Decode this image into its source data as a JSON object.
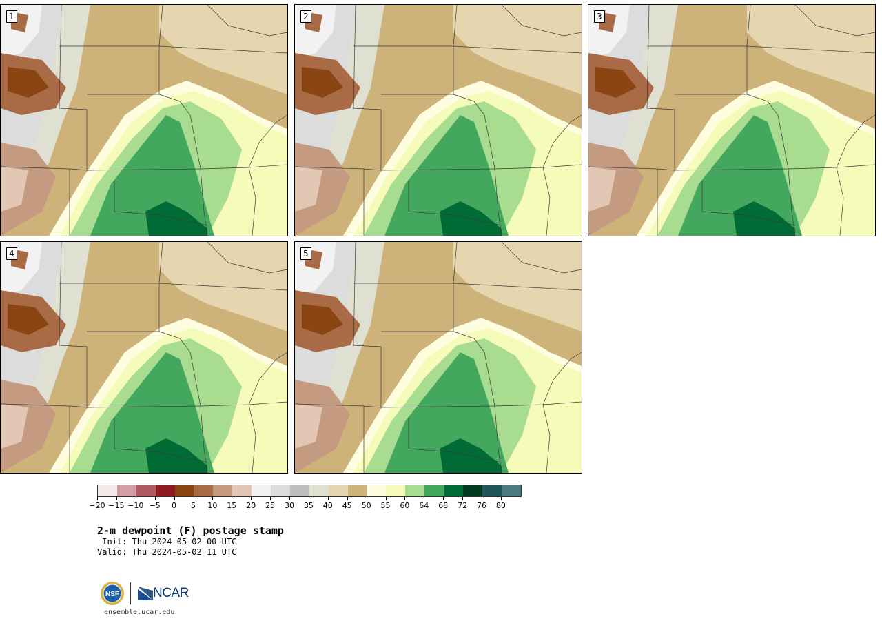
{
  "panels": [
    {
      "label": "1"
    },
    {
      "label": "2"
    },
    {
      "label": "3"
    },
    {
      "label": "4"
    },
    {
      "label": "5"
    }
  ],
  "colorbar": {
    "colors": [
      "#f5e9e9",
      "#d59ea5",
      "#b05a62",
      "#8c1a23",
      "#8b4513",
      "#a86b45",
      "#c49a80",
      "#e2c7b4",
      "#f2f2f2",
      "#dcdcdc",
      "#bdbdbd",
      "#e0e0d2",
      "#e5d6b0",
      "#cdb27a",
      "#fffde0",
      "#f5fbb8",
      "#a8dc90",
      "#43a85e",
      "#006b35",
      "#003a20",
      "#1f5558",
      "#4d7b80"
    ],
    "tick_labels": [
      "−20",
      "−15",
      "−10",
      "−5",
      "0",
      "5",
      "10",
      "15",
      "20",
      "25",
      "30",
      "35",
      "40",
      "45",
      "50",
      "55",
      "60",
      "64",
      "68",
      "72",
      "76",
      "80"
    ]
  },
  "title": "2-m dewpoint (F) postage stamp",
  "init_line": " Init: Thu 2024-05-02 00 UTC",
  "valid_line": "Valid: Thu 2024-05-02 11 UTC",
  "logos": {
    "nsf_text": "NSF",
    "ncar_text": "NCAR",
    "nsf_icon": "nsf-logo-icon",
    "ncar_icon": "ncar-logo-icon"
  },
  "site_url": "ensemble.ucar.edu"
}
